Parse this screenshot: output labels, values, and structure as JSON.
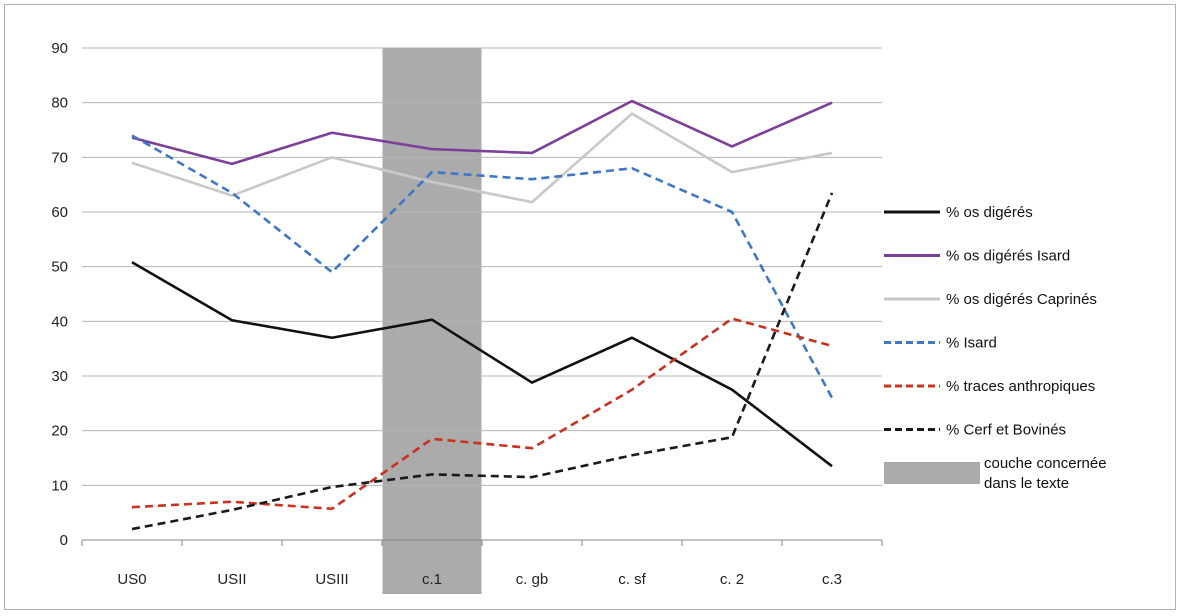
{
  "chart_data": {
    "type": "line",
    "categories": [
      "US0",
      "USII",
      "USIII",
      "c.1",
      "c. gb",
      "c. sf",
      "c. 2",
      "c.3"
    ],
    "ylim": [
      0,
      90
    ],
    "yticks": [
      0,
      10,
      20,
      30,
      40,
      50,
      60,
      70,
      80,
      90
    ],
    "grid": true,
    "legend_position": "right",
    "highlight": {
      "category": "c.1",
      "label": "couche concernée dans le texte",
      "color": "#ababab"
    },
    "series": [
      {
        "name": "% os digérés",
        "color": "#111111",
        "dashed": false,
        "values": [
          50.8,
          40.2,
          37,
          40.3,
          28.8,
          37,
          27.5,
          13.5
        ]
      },
      {
        "name": "% os digérés Isard",
        "color": "#7d3f98",
        "dashed": false,
        "values": [
          73.6,
          68.8,
          74.5,
          71.5,
          70.8,
          80.3,
          72,
          80
        ]
      },
      {
        "name": "% os digérés Caprinés",
        "color": "#c8c8c8",
        "dashed": false,
        "values": [
          69,
          63,
          70,
          65.5,
          61.8,
          78,
          67.3,
          70.8
        ]
      },
      {
        "name": "% Isard",
        "color": "#3f77c4",
        "dashed": true,
        "values": [
          74,
          63.5,
          49,
          67.3,
          66,
          68,
          60,
          26
        ]
      },
      {
        "name": "%  traces anthropiques",
        "color": "#c9321f",
        "dashed": true,
        "values": [
          6,
          7,
          5.7,
          18.5,
          16.8,
          27.5,
          40.5,
          35.5
        ]
      },
      {
        "name": "% Cerf et Bovinés",
        "color": "#1a1a1a",
        "dashed": true,
        "values": [
          2,
          5.5,
          9.7,
          12,
          11.5,
          15.5,
          18.8,
          63.5
        ]
      }
    ]
  }
}
